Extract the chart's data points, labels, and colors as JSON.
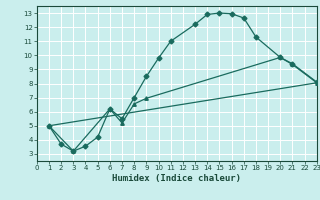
{
  "xlabel": "Humidex (Indice chaleur)",
  "bg_color": "#caeeed",
  "line_color": "#1a6b5e",
  "xlim": [
    0,
    23
  ],
  "ylim": [
    2.5,
    13.5
  ],
  "xticks": [
    0,
    1,
    2,
    3,
    4,
    5,
    6,
    7,
    8,
    9,
    10,
    11,
    12,
    13,
    14,
    15,
    16,
    17,
    18,
    19,
    20,
    21,
    22,
    23
  ],
  "yticks": [
    3,
    4,
    5,
    6,
    7,
    8,
    9,
    10,
    11,
    12,
    13
  ],
  "line1_x": [
    1,
    2,
    3,
    4,
    5,
    6,
    7,
    8,
    9,
    10,
    11,
    13,
    14,
    15,
    16,
    17,
    18,
    20,
    21,
    23
  ],
  "line1_y": [
    5.0,
    3.7,
    3.2,
    3.55,
    4.2,
    6.2,
    5.5,
    7.0,
    8.5,
    9.8,
    11.0,
    12.2,
    12.9,
    13.0,
    12.95,
    12.65,
    11.3,
    9.85,
    9.4,
    8.1
  ],
  "line2_x": [
    1,
    3,
    6,
    7,
    8,
    9,
    20,
    21,
    23
  ],
  "line2_y": [
    5.0,
    3.2,
    6.2,
    5.2,
    6.55,
    6.95,
    9.85,
    9.35,
    8.05
  ],
  "line3_x": [
    1,
    23
  ],
  "line3_y": [
    5.0,
    8.05
  ]
}
